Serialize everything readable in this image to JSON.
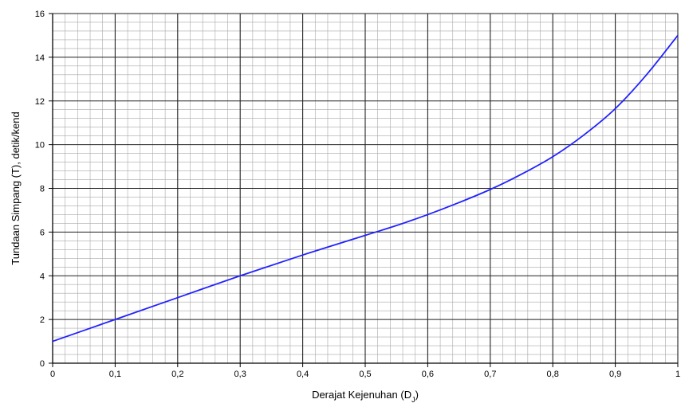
{
  "chart_data": {
    "type": "line",
    "title": "",
    "xlabel": "Derajat Kejenuhan (D",
    "xlabel_subscript": "J",
    "xlabel_suffix": ")",
    "ylabel": "Tundaan Simpang (T), detik/kend",
    "xlim": [
      0,
      1
    ],
    "ylim": [
      0,
      16
    ],
    "x_ticks": [
      "0",
      "0,1",
      "0,2",
      "0,3",
      "0,4",
      "0,5",
      "0,6",
      "0,7",
      "0,8",
      "0,9",
      "1"
    ],
    "y_ticks": [
      "0",
      "2",
      "4",
      "6",
      "8",
      "10",
      "12",
      "14",
      "16"
    ],
    "grid": true,
    "series": [
      {
        "color": "#2222ff",
        "x": [
          0,
          0.1,
          0.2,
          0.3,
          0.4,
          0.5,
          0.55,
          0.6,
          0.65,
          0.7,
          0.75,
          0.8,
          0.85,
          0.9,
          0.95,
          1.0
        ],
        "y": [
          1.0,
          2.0,
          3.0,
          4.0,
          4.95,
          5.85,
          6.3,
          6.8,
          7.35,
          7.95,
          8.65,
          9.45,
          10.45,
          11.65,
          13.2,
          15.0
        ]
      }
    ]
  }
}
